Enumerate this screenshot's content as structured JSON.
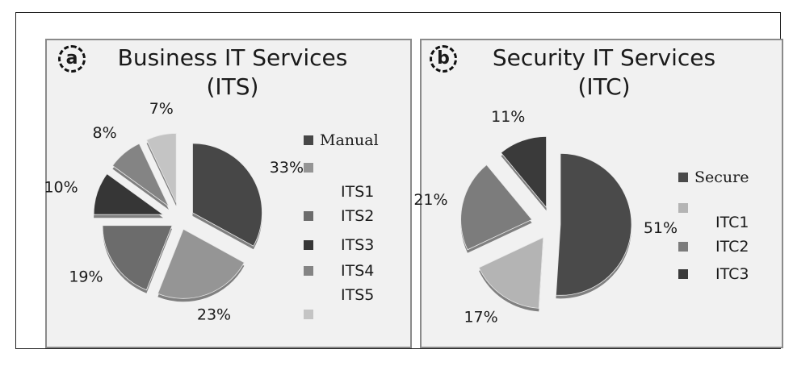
{
  "chart_data": [
    {
      "type": "pie",
      "badge": "a",
      "title": "Business IT Services (ITS)",
      "title_lines": [
        "Business IT Services",
        "(ITS)"
      ],
      "legend": [
        "Manual",
        "",
        "ITS1",
        "ITS2",
        "ITS3",
        "ITS4",
        "ITS5",
        ""
      ],
      "slices": [
        {
          "value": 33,
          "label": "33%",
          "color": "#474747"
        },
        {
          "value": 23,
          "label": "23%",
          "color": "#959595"
        },
        {
          "value": 19,
          "label": "19%",
          "color": "#6c6c6c"
        },
        {
          "value": 10,
          "label": "10%",
          "color": "#363636"
        },
        {
          "value": 8,
          "label": "8%",
          "color": "#848484"
        },
        {
          "value": 7,
          "label": "7%",
          "color": "#c4c4c4"
        }
      ],
      "legend_colors": [
        "#474747",
        "#959595",
        "#6c6c6c",
        "#363636",
        "#848484",
        "#c4c4c4"
      ],
      "legend_position": "right"
    },
    {
      "type": "pie",
      "badge": "b",
      "title": "Security IT Services (ITC)",
      "title_lines": [
        "Security IT Services",
        "(ITC)"
      ],
      "legend": [
        "Secure",
        "",
        "ITC1",
        "ITC2",
        "ITC3"
      ],
      "slices": [
        {
          "value": 51,
          "label": "51%",
          "color": "#4a4a4a"
        },
        {
          "value": 17,
          "label": "17%",
          "color": "#b4b4b4"
        },
        {
          "value": 21,
          "label": "21%",
          "color": "#7c7c7c"
        },
        {
          "value": 11,
          "label": "11%",
          "color": "#3a3a3a"
        }
      ],
      "legend_colors": [
        "#4a4a4a",
        "#b4b4b4",
        "#7c7c7c",
        "#3a3a3a"
      ],
      "legend_position": "right"
    }
  ]
}
